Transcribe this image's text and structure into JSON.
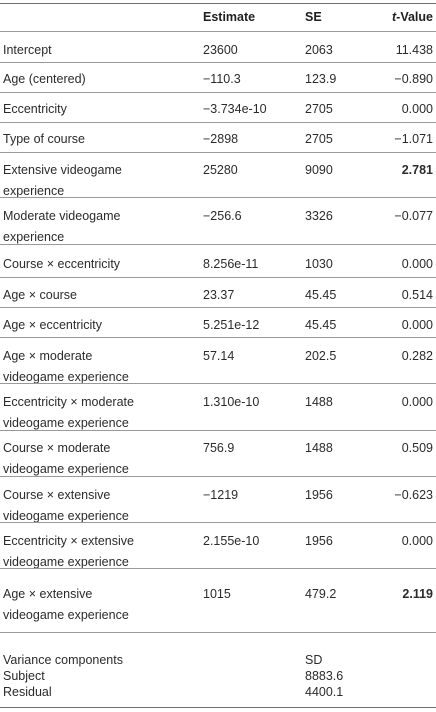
{
  "header": {
    "estimate": "Estimate",
    "se": "SE",
    "t_italic": "t",
    "t_rest": "-Value"
  },
  "rows": [
    {
      "label": "Intercept",
      "estimate": "23600",
      "se": "2063",
      "t": "11.438"
    },
    {
      "label": "Age (centered)",
      "estimate": "−110.3",
      "se": "123.9",
      "t": "−0.890"
    },
    {
      "label": "Eccentricity",
      "estimate": "−3.734e-10",
      "se": "2705",
      "t": "0.000"
    },
    {
      "label": "Type of course",
      "estimate": "−2898",
      "se": "2705",
      "t": "−1.071"
    },
    {
      "label1": "Extensive videogame",
      "label2": "experience",
      "estimate": "25280",
      "se": "9090",
      "t": "2.781",
      "bold": true
    },
    {
      "label1": "Moderate videogame",
      "label2": "experience",
      "estimate": "−256.6",
      "se": "3326",
      "t": "−0.077"
    },
    {
      "label": "Course × eccentricity",
      "estimate": "8.256e-11",
      "se": "1030",
      "t": "0.000"
    },
    {
      "label": "Age × course",
      "estimate": "23.37",
      "se": "45.45",
      "t": "0.514"
    },
    {
      "label": "Age × eccentricity",
      "estimate": "5.251e-12",
      "se": "45.45",
      "t": "0.000"
    },
    {
      "label1": "Age × moderate",
      "label2": "videogame experience",
      "estimate": "57.14",
      "se": "202.5",
      "t": "0.282"
    },
    {
      "label1": "Eccentricity × moderate",
      "label2": "videogame experience",
      "estimate": "1.310e-10",
      "se": "1488",
      "t": "0.000"
    },
    {
      "label1": "Course × moderate",
      "label2": "videogame experience",
      "estimate": "756.9",
      "se": "1488",
      "t": "0.509"
    },
    {
      "label1": "Course × extensive",
      "label2": "videogame experience",
      "estimate": "−1219",
      "se": "1956",
      "t": "−0.623"
    },
    {
      "label1": "Eccentricity × extensive",
      "label2": "videogame experience",
      "estimate": "2.155e-10",
      "se": "1956",
      "t": "0.000"
    },
    {
      "label1": "Age × extensive",
      "label2": "videogame experience",
      "estimate": "1015",
      "se": "479.2",
      "t": "2.119",
      "bold": true
    }
  ],
  "variance": {
    "title": "Variance components",
    "sd_header": "SD",
    "items": [
      {
        "label": "Subject",
        "value": "8883.6"
      },
      {
        "label": "Residual",
        "value": "4400.1"
      }
    ]
  }
}
